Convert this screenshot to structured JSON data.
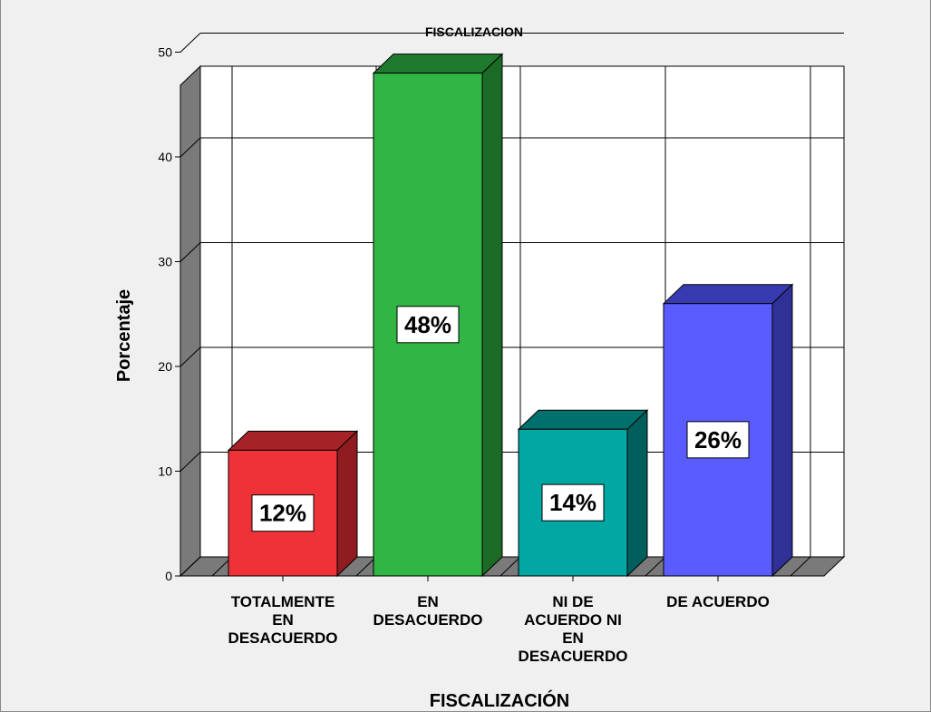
{
  "chart_data": {
    "type": "bar",
    "title": "FISCALIZACION",
    "xlabel": "FISCALIZACIÓN",
    "ylabel": "Porcentaje",
    "categories": [
      [
        "TOTALMENTE",
        "EN",
        "DESACUERDO"
      ],
      [
        "EN",
        "DESACUERDO"
      ],
      [
        "NI DE",
        "ACUERDO NI",
        "EN",
        "DESACUERDO"
      ],
      [
        "DE ACUERDO"
      ]
    ],
    "values": [
      12,
      48,
      14,
      26
    ],
    "data_labels": [
      "12%",
      "48%",
      "14%",
      "26%"
    ],
    "ylim": [
      0,
      50
    ],
    "yticks": [
      0,
      10,
      20,
      30,
      40,
      50
    ],
    "grid": true,
    "three_d": true,
    "colors": [
      {
        "front": "#ee3238",
        "side": "#8e1c20",
        "top": "#a52226"
      },
      {
        "front": "#31b544",
        "side": "#1b6b27",
        "top": "#207a2d"
      },
      {
        "front": "#00a7a3",
        "side": "#005f5c",
        "top": "#00706d"
      },
      {
        "front": "#5a5cff",
        "side": "#2f3196",
        "top": "#383ab0"
      }
    ]
  }
}
